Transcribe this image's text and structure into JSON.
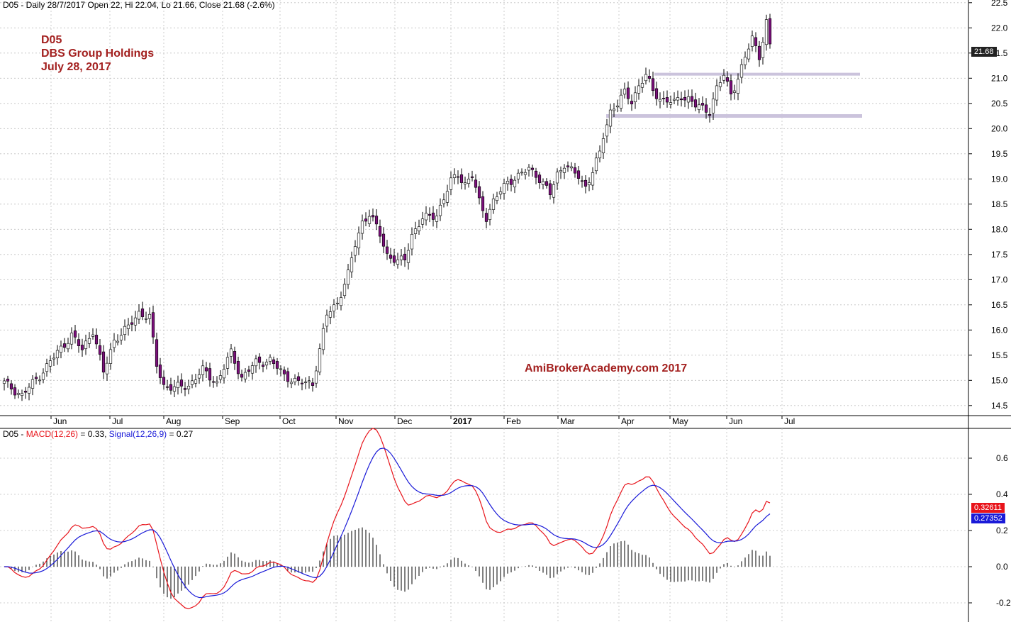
{
  "price_header": {
    "text": "D05 - Daily 28/7/2017 Open 22, Hi 22.04, Lo 21.66, Close 21.68 (-2.6%)"
  },
  "macd_header": {
    "prefix": "D05 - ",
    "macd_label": "MACD(12,26)",
    "macd_value": " = 0.33, ",
    "signal_label": "Signal(12,26,9)",
    "signal_value": " = 0.27"
  },
  "annotation": {
    "symbol": "D05",
    "company": "DBS Group Holdings",
    "date": "July 28, 2017"
  },
  "watermark": "AmiBrokerAcademy.com  2017",
  "last_price_tag": "21.68",
  "macd_tag": "0.32611",
  "signal_tag": "0.27352",
  "colors": {
    "up_candle": "#ffffff",
    "down_candle": "#7b0f7b",
    "macd_line": "#e8141b",
    "signal_line": "#1a1ad8",
    "support_resistance": "#cbc3dc",
    "annotation_text": "#a3201f",
    "grid": "#c0c0c0"
  },
  "chart_data": [
    {
      "type": "candlestick",
      "title": "D05 - Daily 28/7/2017 Open 22, Hi 22.04, Lo 21.66, Close 21.68 (-2.6%)",
      "x_tick_labels": [
        "Jun",
        "Jul",
        "Aug",
        "Sep",
        "Oct",
        "Nov",
        "Dec",
        "2017",
        "Feb",
        "Mar",
        "Apr",
        "May",
        "Jun",
        "Jul"
      ],
      "y_ticks": [
        "14.5",
        "15.0",
        "15.5",
        "16.0",
        "16.5",
        "17.0",
        "17.5",
        "18.0",
        "18.5",
        "19.0",
        "19.5",
        "20.0",
        "20.5",
        "21.0",
        "21.5",
        "22.0",
        "22.5"
      ],
      "ylim": [
        14.3,
        22.9
      ],
      "last_value": 21.68,
      "grid": true,
      "close_path": [
        [
          0,
          14.95
        ],
        [
          5,
          14.7
        ],
        [
          10,
          15.1
        ],
        [
          15,
          15.55
        ],
        [
          19,
          15.9
        ],
        [
          22,
          15.6
        ],
        [
          25,
          16.0
        ],
        [
          28,
          15.15
        ],
        [
          31,
          15.8
        ],
        [
          35,
          16.05
        ],
        [
          38,
          16.35
        ],
        [
          41,
          16.25
        ],
        [
          43,
          15.3
        ],
        [
          45,
          14.9
        ],
        [
          48,
          14.85
        ],
        [
          52,
          14.9
        ],
        [
          56,
          15.2
        ],
        [
          60,
          14.95
        ],
        [
          64,
          15.55
        ],
        [
          67,
          15.05
        ],
        [
          71,
          15.35
        ],
        [
          75,
          15.4
        ],
        [
          79,
          15.1
        ],
        [
          83,
          14.95
        ],
        [
          87,
          14.95
        ],
        [
          89,
          15.6
        ],
        [
          91,
          16.3
        ],
        [
          94,
          16.55
        ],
        [
          97,
          17.1
        ],
        [
          99,
          17.7
        ],
        [
          101,
          18.15
        ],
        [
          103,
          18.3
        ],
        [
          106,
          17.9
        ],
        [
          108,
          17.5
        ],
        [
          111,
          17.35
        ],
        [
          113,
          17.4
        ],
        [
          115,
          17.9
        ],
        [
          118,
          18.2
        ],
        [
          122,
          18.3
        ],
        [
          124,
          18.6
        ],
        [
          126,
          18.95
        ],
        [
          128,
          19.1
        ],
        [
          130,
          18.9
        ],
        [
          132,
          19.05
        ],
        [
          134,
          18.55
        ],
        [
          136,
          18.25
        ],
        [
          138,
          18.55
        ],
        [
          140,
          18.75
        ],
        [
          142,
          18.95
        ],
        [
          145,
          19.05
        ],
        [
          148,
          19.2
        ],
        [
          150,
          19.1
        ],
        [
          152,
          18.9
        ],
        [
          154,
          18.7
        ],
        [
          156,
          19.1
        ],
        [
          158,
          19.3
        ],
        [
          160,
          19.15
        ],
        [
          162,
          19.05
        ],
        [
          164,
          18.85
        ],
        [
          166,
          19.15
        ],
        [
          168,
          19.5
        ],
        [
          169,
          19.85
        ],
        [
          171,
          20.35
        ],
        [
          173,
          20.5
        ],
        [
          175,
          20.7
        ],
        [
          177,
          20.55
        ],
        [
          179,
          20.85
        ],
        [
          181,
          21.05
        ],
        [
          183,
          20.75
        ],
        [
          185,
          20.6
        ],
        [
          187,
          20.55
        ],
        [
          189,
          20.5
        ],
        [
          191,
          20.65
        ],
        [
          193,
          20.6
        ],
        [
          195,
          20.45
        ],
        [
          197,
          20.4
        ],
        [
          199,
          20.35
        ],
        [
          201,
          20.8
        ],
        [
          203,
          21.05
        ],
        [
          205,
          20.7
        ],
        [
          207,
          21.0
        ],
        [
          209,
          21.4
        ],
        [
          211,
          21.8
        ],
        [
          213,
          21.45
        ],
        [
          215,
          22.1
        ],
        [
          216,
          21.68
        ]
      ],
      "support_line": 20.25,
      "resistance_line": 21.08
    },
    {
      "type": "line",
      "title": "D05 - MACD(12,26) = 0.33, Signal(12,26,9) = 0.27",
      "y_ticks": [
        "-0.2",
        "0.0",
        "0.2",
        "0.4",
        "0.6"
      ],
      "ylim": [
        -0.3,
        0.72
      ],
      "series": [
        {
          "name": "MACD(12,26)",
          "last_value": 0.32611
        },
        {
          "name": "Signal(12,26,9)",
          "last_value": 0.27352
        }
      ],
      "histogram": "MACD minus Signal"
    }
  ]
}
